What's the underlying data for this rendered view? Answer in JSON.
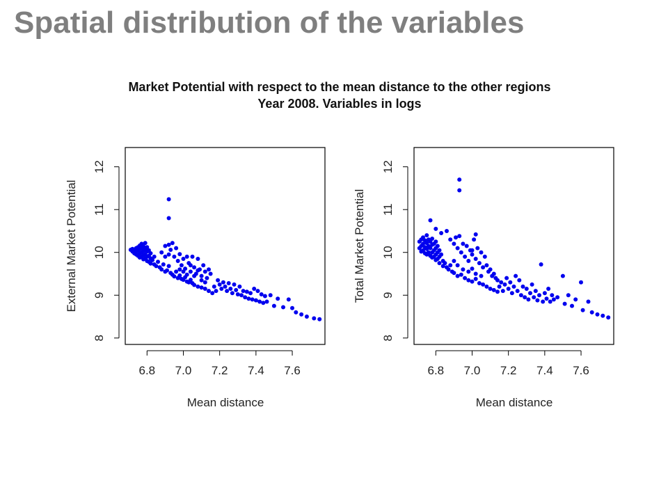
{
  "slide_title": "Spatial distribution of the variables",
  "figure_title": {
    "line1": "Market Potential with respect to the mean distance to the other regions",
    "line2": "Year 2008. Variables in logs"
  },
  "colors": {
    "points": "#0000ee",
    "title": "#7f7f7f"
  },
  "chart_data": [
    {
      "type": "scatter",
      "xlabel": "Mean distance",
      "ylabel": "External Market Potential",
      "xlim": [
        6.68,
        7.78
      ],
      "ylim": [
        7.85,
        12.45
      ],
      "xticks": [
        6.8,
        7.0,
        7.2,
        7.4,
        7.6
      ],
      "xticklabels": [
        "6.8",
        "7.0",
        "7.2",
        "7.4",
        "7.6"
      ],
      "yticks": [
        8,
        9,
        10,
        11,
        12
      ],
      "yticklabels": [
        "8",
        "9",
        "10",
        "11",
        "12"
      ],
      "grid": false,
      "points": [
        [
          6.71,
          10.06
        ],
        [
          6.72,
          10.02
        ],
        [
          6.72,
          10.08
        ],
        [
          6.73,
          10.05
        ],
        [
          6.73,
          9.98
        ],
        [
          6.74,
          10.1
        ],
        [
          6.74,
          10.02
        ],
        [
          6.74,
          9.95
        ],
        [
          6.75,
          10.12
        ],
        [
          6.75,
          10.05
        ],
        [
          6.75,
          9.92
        ],
        [
          6.76,
          10.16
        ],
        [
          6.76,
          10.08
        ],
        [
          6.76,
          9.98
        ],
        [
          6.76,
          9.88
        ],
        [
          6.77,
          10.2
        ],
        [
          6.77,
          10.1
        ],
        [
          6.77,
          10.0
        ],
        [
          6.77,
          9.9
        ],
        [
          6.78,
          10.14
        ],
        [
          6.78,
          10.04
        ],
        [
          6.78,
          9.94
        ],
        [
          6.78,
          9.84
        ],
        [
          6.79,
          10.22
        ],
        [
          6.79,
          10.08
        ],
        [
          6.79,
          9.96
        ],
        [
          6.79,
          9.86
        ],
        [
          6.8,
          10.12
        ],
        [
          6.8,
          10.02
        ],
        [
          6.8,
          9.9
        ],
        [
          6.8,
          9.8
        ],
        [
          6.81,
          10.05
        ],
        [
          6.81,
          9.92
        ],
        [
          6.81,
          9.78
        ],
        [
          6.82,
          9.98
        ],
        [
          6.82,
          9.86
        ],
        [
          6.82,
          9.74
        ],
        [
          6.83,
          9.82
        ],
        [
          6.84,
          9.72
        ],
        [
          6.84,
          9.9
        ],
        [
          6.85,
          9.68
        ],
        [
          6.86,
          9.78
        ],
        [
          6.87,
          9.65
        ],
        [
          6.88,
          9.6
        ],
        [
          6.89,
          9.72
        ],
        [
          6.9,
          9.55
        ],
        [
          6.91,
          9.58
        ],
        [
          6.92,
          9.68
        ],
        [
          6.93,
          9.52
        ],
        [
          6.94,
          9.48
        ],
        [
          6.95,
          9.44
        ],
        [
          6.96,
          9.55
        ],
        [
          6.97,
          9.4
        ],
        [
          6.98,
          9.46
        ],
        [
          6.99,
          9.38
        ],
        [
          7.0,
          9.36
        ],
        [
          7.01,
          9.42
        ],
        [
          7.02,
          9.32
        ],
        [
          7.03,
          9.3
        ],
        [
          7.04,
          9.36
        ],
        [
          7.05,
          9.28
        ],
        [
          7.06,
          9.24
        ],
        [
          7.08,
          9.2
        ],
        [
          7.1,
          9.18
        ],
        [
          7.12,
          9.15
        ],
        [
          7.14,
          9.1
        ],
        [
          6.88,
          10.0
        ],
        [
          6.9,
          9.9
        ],
        [
          6.9,
          10.15
        ],
        [
          6.92,
          9.95
        ],
        [
          6.92,
          10.18
        ],
        [
          6.93,
          10.06
        ],
        [
          6.94,
          10.22
        ],
        [
          6.95,
          9.9
        ],
        [
          6.96,
          10.1
        ],
        [
          6.97,
          9.8
        ],
        [
          6.98,
          9.96
        ],
        [
          6.99,
          9.7
        ],
        [
          7.0,
          9.85
        ],
        [
          7.01,
          9.62
        ],
        [
          7.02,
          9.9
        ],
        [
          7.03,
          9.75
        ],
        [
          7.04,
          9.55
        ],
        [
          7.05,
          9.9
        ],
        [
          7.06,
          9.65
        ],
        [
          7.07,
          9.5
        ],
        [
          7.08,
          9.85
        ],
        [
          7.09,
          9.6
        ],
        [
          7.1,
          9.45
        ],
        [
          7.11,
          9.7
        ],
        [
          7.12,
          9.55
        ],
        [
          7.13,
          9.4
        ],
        [
          7.14,
          9.6
        ],
        [
          7.15,
          9.5
        ],
        [
          6.98,
          9.6
        ],
        [
          7.0,
          9.55
        ],
        [
          7.02,
          9.48
        ],
        [
          7.04,
          9.7
        ],
        [
          7.06,
          9.45
        ],
        [
          7.08,
          9.58
        ],
        [
          7.1,
          9.35
        ],
        [
          7.12,
          9.3
        ],
        [
          6.92,
          11.24
        ],
        [
          6.92,
          10.8
        ],
        [
          7.16,
          9.05
        ],
        [
          7.17,
          9.2
        ],
        [
          7.18,
          9.1
        ],
        [
          7.19,
          9.35
        ],
        [
          7.2,
          9.25
        ],
        [
          7.21,
          9.15
        ],
        [
          7.22,
          9.3
        ],
        [
          7.23,
          9.2
        ],
        [
          7.24,
          9.1
        ],
        [
          7.25,
          9.28
        ],
        [
          7.26,
          9.15
        ],
        [
          7.27,
          9.05
        ],
        [
          7.28,
          9.25
        ],
        [
          7.29,
          9.12
        ],
        [
          7.3,
          9.02
        ],
        [
          7.31,
          9.2
        ],
        [
          7.32,
          9.0
        ],
        [
          7.33,
          9.1
        ],
        [
          7.34,
          8.95
        ],
        [
          7.35,
          9.08
        ],
        [
          7.36,
          8.92
        ],
        [
          7.37,
          9.05
        ],
        [
          7.38,
          8.9
        ],
        [
          7.39,
          9.15
        ],
        [
          7.4,
          8.88
        ],
        [
          7.41,
          9.1
        ],
        [
          7.42,
          8.85
        ],
        [
          7.43,
          9.02
        ],
        [
          7.44,
          8.82
        ],
        [
          7.45,
          8.98
        ],
        [
          7.46,
          8.85
        ],
        [
          7.48,
          9.0
        ],
        [
          7.5,
          8.75
        ],
        [
          7.52,
          8.92
        ],
        [
          7.55,
          8.72
        ],
        [
          7.58,
          8.9
        ],
        [
          7.6,
          8.7
        ],
        [
          7.62,
          8.6
        ],
        [
          7.65,
          8.55
        ],
        [
          7.68,
          8.5
        ],
        [
          7.72,
          8.46
        ],
        [
          7.75,
          8.44
        ]
      ]
    },
    {
      "type": "scatter",
      "xlabel": "Mean distance",
      "ylabel": "Total Market Potential",
      "xlim": [
        6.68,
        7.78
      ],
      "ylim": [
        7.85,
        12.45
      ],
      "xticks": [
        6.8,
        7.0,
        7.2,
        7.4,
        7.6
      ],
      "xticklabels": [
        "6.8",
        "7.0",
        "7.2",
        "7.4",
        "7.6"
      ],
      "yticks": [
        8,
        9,
        10,
        11,
        12
      ],
      "yticklabels": [
        "8",
        "9",
        "10",
        "11",
        "12"
      ],
      "grid": false,
      "points": [
        [
          6.71,
          10.25
        ],
        [
          6.71,
          10.1
        ],
        [
          6.72,
          10.3
        ],
        [
          6.72,
          10.15
        ],
        [
          6.72,
          10.02
        ],
        [
          6.73,
          10.35
        ],
        [
          6.73,
          10.2
        ],
        [
          6.73,
          10.05
        ],
        [
          6.74,
          10.28
        ],
        [
          6.74,
          10.12
        ],
        [
          6.74,
          9.98
        ],
        [
          6.75,
          10.4
        ],
        [
          6.75,
          10.22
        ],
        [
          6.75,
          10.08
        ],
        [
          6.75,
          9.95
        ],
        [
          6.76,
          10.3
        ],
        [
          6.76,
          10.15
        ],
        [
          6.76,
          10.0
        ],
        [
          6.77,
          10.25
        ],
        [
          6.77,
          10.1
        ],
        [
          6.77,
          9.92
        ],
        [
          6.78,
          10.32
        ],
        [
          6.78,
          10.18
        ],
        [
          6.78,
          10.0
        ],
        [
          6.78,
          9.88
        ],
        [
          6.79,
          10.2
        ],
        [
          6.79,
          10.05
        ],
        [
          6.79,
          9.9
        ],
        [
          6.8,
          10.25
        ],
        [
          6.8,
          10.1
        ],
        [
          6.8,
          9.95
        ],
        [
          6.8,
          9.82
        ],
        [
          6.81,
          10.15
        ],
        [
          6.81,
          10.0
        ],
        [
          6.81,
          9.85
        ],
        [
          6.82,
          10.05
        ],
        [
          6.82,
          9.9
        ],
        [
          6.82,
          9.75
        ],
        [
          6.83,
          9.95
        ],
        [
          6.84,
          9.8
        ],
        [
          6.84,
          9.68
        ],
        [
          6.85,
          9.75
        ],
        [
          6.86,
          9.65
        ],
        [
          6.87,
          9.6
        ],
        [
          6.88,
          9.7
        ],
        [
          6.89,
          9.55
        ],
        [
          6.9,
          9.52
        ],
        [
          6.92,
          9.45
        ],
        [
          6.94,
          9.48
        ],
        [
          6.96,
          9.4
        ],
        [
          6.98,
          9.35
        ],
        [
          7.0,
          9.32
        ],
        [
          7.02,
          9.38
        ],
        [
          7.04,
          9.28
        ],
        [
          7.06,
          9.25
        ],
        [
          7.08,
          9.2
        ],
        [
          7.1,
          9.15
        ],
        [
          7.12,
          9.12
        ],
        [
          7.14,
          9.08
        ],
        [
          6.77,
          10.75
        ],
        [
          6.8,
          10.55
        ],
        [
          6.83,
          10.45
        ],
        [
          6.86,
          10.5
        ],
        [
          6.88,
          10.3
        ],
        [
          6.9,
          10.2
        ],
        [
          6.91,
          10.35
        ],
        [
          6.92,
          10.1
        ],
        [
          6.93,
          10.38
        ],
        [
          6.94,
          10.0
        ],
        [
          6.95,
          10.2
        ],
        [
          6.96,
          9.9
        ],
        [
          6.97,
          10.15
        ],
        [
          6.98,
          9.8
        ],
        [
          6.99,
          10.05
        ],
        [
          7.0,
          9.95
        ],
        [
          7.01,
          10.3
        ],
        [
          7.02,
          9.85
        ],
        [
          7.03,
          10.1
        ],
        [
          7.04,
          9.75
        ],
        [
          7.05,
          10.0
        ],
        [
          7.06,
          9.65
        ],
        [
          7.07,
          9.9
        ],
        [
          7.08,
          9.7
        ],
        [
          7.09,
          9.55
        ],
        [
          7.1,
          9.6
        ],
        [
          7.11,
          9.45
        ],
        [
          7.12,
          9.5
        ],
        [
          7.13,
          9.4
        ],
        [
          7.14,
          9.35
        ],
        [
          6.9,
          9.8
        ],
        [
          6.92,
          9.7
        ],
        [
          6.95,
          9.6
        ],
        [
          6.98,
          9.55
        ],
        [
          7.0,
          9.62
        ],
        [
          7.02,
          9.5
        ],
        [
          7.05,
          9.45
        ],
        [
          6.93,
          11.7
        ],
        [
          6.93,
          11.45
        ],
        [
          7.0,
          10.05
        ],
        [
          7.02,
          10.42
        ],
        [
          7.15,
          9.2
        ],
        [
          7.16,
          9.3
        ],
        [
          7.17,
          9.1
        ],
        [
          7.18,
          9.25
        ],
        [
          7.19,
          9.4
        ],
        [
          7.2,
          9.15
        ],
        [
          7.21,
          9.3
        ],
        [
          7.22,
          9.05
        ],
        [
          7.23,
          9.2
        ],
        [
          7.24,
          9.45
        ],
        [
          7.25,
          9.1
        ],
        [
          7.26,
          9.35
        ],
        [
          7.27,
          9.0
        ],
        [
          7.28,
          9.2
        ],
        [
          7.29,
          8.95
        ],
        [
          7.3,
          9.15
        ],
        [
          7.31,
          8.9
        ],
        [
          7.32,
          9.05
        ],
        [
          7.33,
          9.25
        ],
        [
          7.34,
          8.95
        ],
        [
          7.35,
          9.1
        ],
        [
          7.36,
          8.88
        ],
        [
          7.37,
          9.0
        ],
        [
          7.38,
          9.72
        ],
        [
          7.39,
          8.85
        ],
        [
          7.4,
          9.05
        ],
        [
          7.41,
          8.92
        ],
        [
          7.42,
          9.15
        ],
        [
          7.43,
          8.85
        ],
        [
          7.44,
          9.0
        ],
        [
          7.45,
          8.9
        ],
        [
          7.47,
          8.95
        ],
        [
          7.5,
          9.45
        ],
        [
          7.51,
          8.8
        ],
        [
          7.53,
          9.0
        ],
        [
          7.55,
          8.75
        ],
        [
          7.57,
          8.9
        ],
        [
          7.6,
          9.3
        ],
        [
          7.61,
          8.65
        ],
        [
          7.64,
          8.85
        ],
        [
          7.66,
          8.6
        ],
        [
          7.69,
          8.55
        ],
        [
          7.72,
          8.52
        ],
        [
          7.75,
          8.48
        ]
      ]
    }
  ]
}
